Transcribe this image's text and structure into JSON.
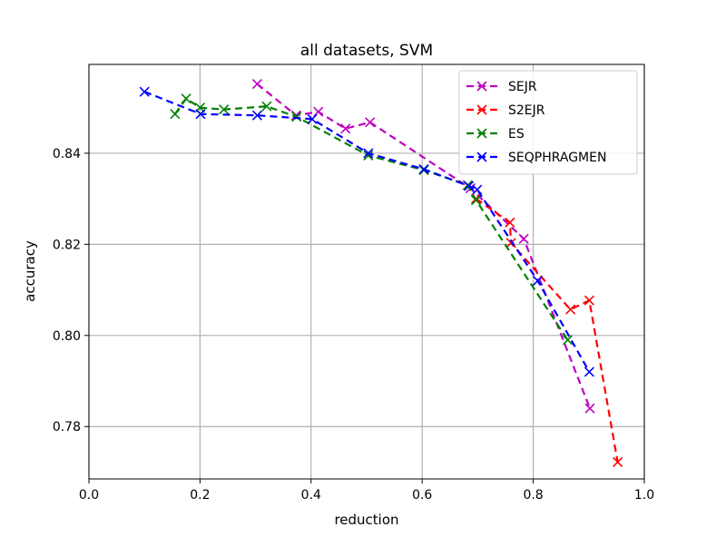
{
  "chart_data": {
    "type": "line",
    "title": "all datasets, SVM",
    "xlabel": "reduction",
    "ylabel": "accuracy",
    "xlim": [
      0.0,
      1.0
    ],
    "ylim": [
      0.7685,
      0.8595
    ],
    "xticks": [
      0.0,
      0.2,
      0.4,
      0.6,
      0.8,
      1.0
    ],
    "xtick_labels": [
      "0.0",
      "0.2",
      "0.4",
      "0.6",
      "0.8",
      "1.0"
    ],
    "yticks": [
      0.78,
      0.8,
      0.82,
      0.84
    ],
    "ytick_labels": [
      "0.78",
      "0.80",
      "0.82",
      "0.84"
    ],
    "grid": true,
    "legend_position": "top-right",
    "series": [
      {
        "name": "SEJR",
        "color": "#bf00bf",
        "x": [
          0.303,
          0.373,
          0.413,
          0.462,
          0.506,
          0.687,
          0.783,
          0.902
        ],
        "y": [
          0.8552,
          0.8483,
          0.8491,
          0.8454,
          0.8468,
          0.8323,
          0.8212,
          0.784
        ]
      },
      {
        "name": "S2EJR",
        "color": "#ff0000",
        "x": [
          0.697,
          0.758,
          0.76,
          0.867,
          0.901,
          0.952
        ],
        "y": [
          0.83,
          0.8248,
          0.8203,
          0.8057,
          0.8077,
          0.7722
        ]
      },
      {
        "name": "ES",
        "color": "#008000",
        "x": [
          0.155,
          0.175,
          0.2,
          0.243,
          0.32,
          0.374,
          0.503,
          0.603,
          0.682,
          0.697,
          0.862
        ],
        "y": [
          0.8486,
          0.852,
          0.85,
          0.8496,
          0.8503,
          0.848,
          0.8395,
          0.8363,
          0.833,
          0.8297,
          0.799
        ]
      },
      {
        "name": "SEQPHRAGMEN",
        "color": "#0000ff",
        "x": [
          0.1,
          0.201,
          0.303,
          0.402,
          0.503,
          0.603,
          0.684,
          0.699,
          0.808,
          0.901
        ],
        "y": [
          0.8535,
          0.8486,
          0.8483,
          0.8475,
          0.84,
          0.8365,
          0.8328,
          0.832,
          0.812,
          0.792
        ]
      }
    ]
  }
}
